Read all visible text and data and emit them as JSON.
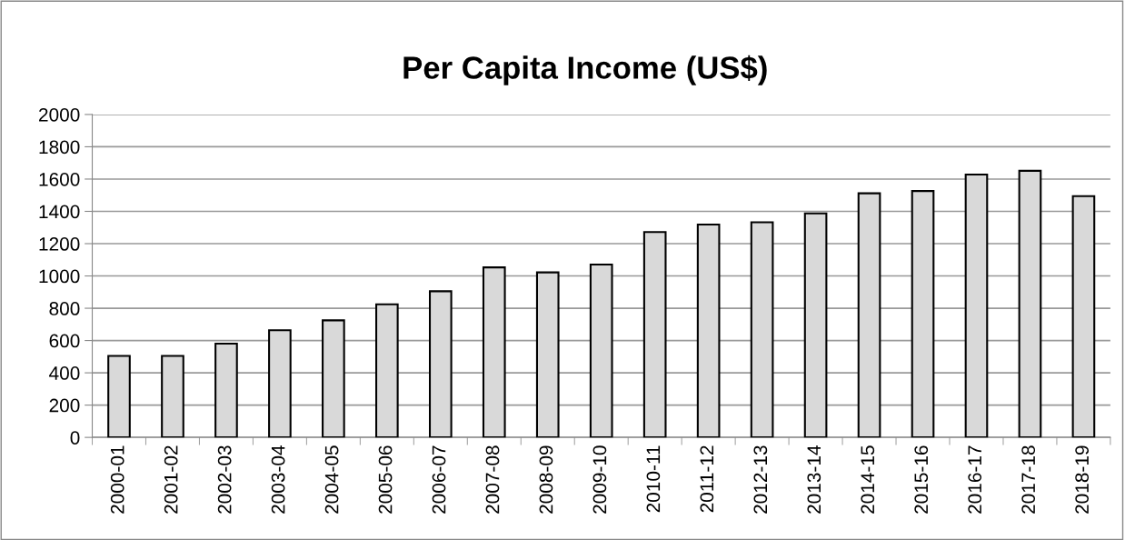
{
  "chart_data": {
    "type": "bar",
    "title": "Per Capita Income (US$)",
    "categories": [
      "2000-01",
      "2001-02",
      "2002-03",
      "2003-04",
      "2004-05",
      "2005-06",
      "2006-07",
      "2007-08",
      "2008-09",
      "2009-10",
      "2010-11",
      "2011-12",
      "2012-13",
      "2013-14",
      "2014-15",
      "2015-16",
      "2016-17",
      "2017-18",
      "2018-19"
    ],
    "values": [
      505,
      505,
      581,
      664,
      725,
      824,
      905,
      1053,
      1022,
      1071,
      1272,
      1318,
      1332,
      1387,
      1512,
      1526,
      1628,
      1651,
      1494
    ],
    "color": "#d9d9d9",
    "ylim": [
      0,
      2000
    ],
    "yticks": [
      0,
      200,
      400,
      600,
      800,
      1000,
      1200,
      1400,
      1600,
      1800,
      2000
    ],
    "grid": "y",
    "legend": false
  }
}
